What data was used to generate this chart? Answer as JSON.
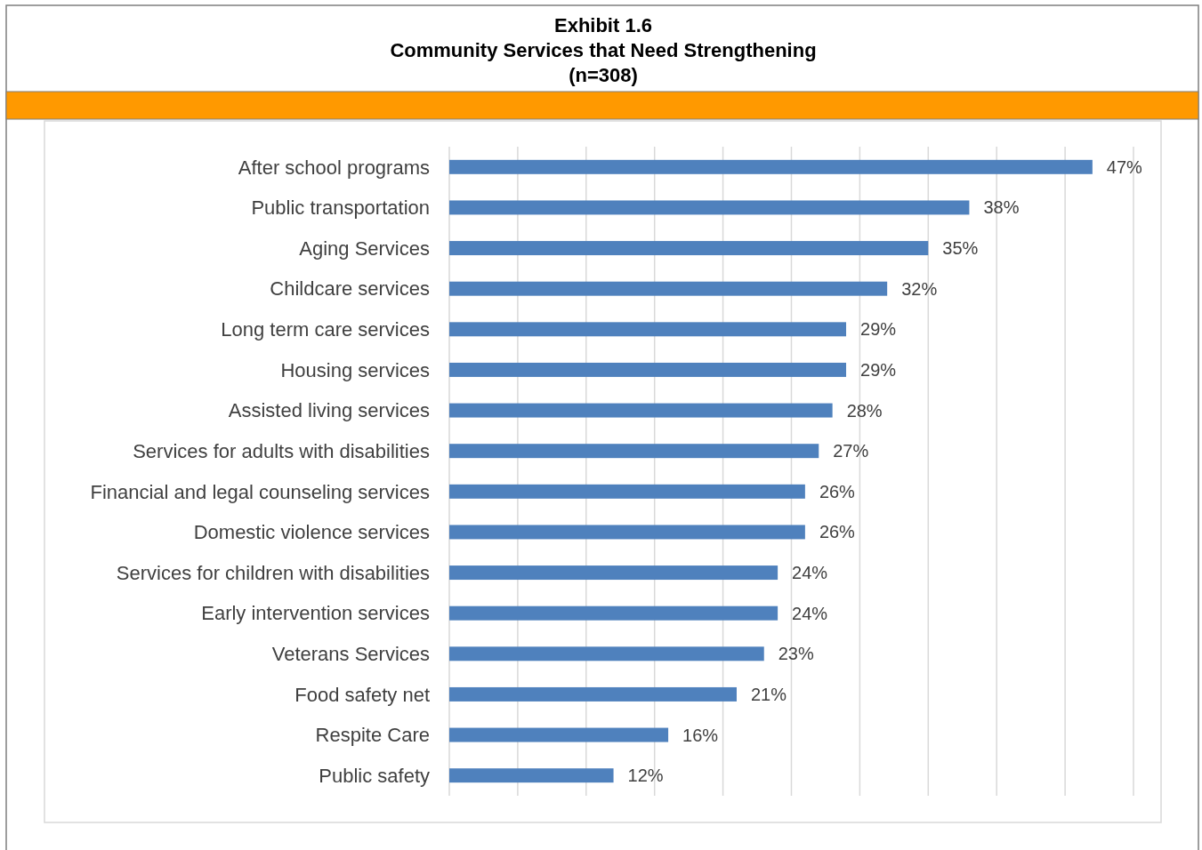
{
  "chart_data": {
    "type": "bar",
    "orientation": "horizontal",
    "title": "Exhibit 1.6\nCommunity Services that Need Strengthening\n(n=308)",
    "categories": [
      "After school programs",
      "Public transportation",
      "Aging Services",
      "Childcare services",
      "Long term care services",
      "Housing services",
      "Assisted living services",
      "Services for adults with disabilities",
      "Financial and legal counseling services",
      "Domestic violence services",
      "Services for children with disabilities",
      "Early intervention services",
      "Veterans Services",
      "Food safety net",
      "Respite Care",
      "Public safety"
    ],
    "values": [
      47,
      38,
      35,
      32,
      29,
      29,
      28,
      27,
      26,
      26,
      24,
      24,
      23,
      21,
      16,
      12
    ],
    "value_labels": [
      "47%",
      "38%",
      "35%",
      "32%",
      "29%",
      "29%",
      "28%",
      "27%",
      "26%",
      "26%",
      "24%",
      "24%",
      "23%",
      "21%",
      "16%",
      "12%"
    ],
    "color": "#4f81bd",
    "xlim": [
      0,
      50
    ],
    "xticks": [
      {
        "value": 0,
        "label": null
      },
      {
        "value": 5,
        "label": null
      },
      {
        "value": 10,
        "label": null
      },
      {
        "value": 15,
        "label": null
      },
      {
        "value": 20,
        "label": null
      },
      {
        "value": 25,
        "label": null
      },
      {
        "value": 30,
        "label": null
      },
      {
        "value": 35,
        "label": null
      },
      {
        "value": 40,
        "label": null
      },
      {
        "value": 45,
        "label": null
      },
      {
        "value": 50,
        "label": null
      }
    ],
    "grid": "x",
    "tick_labels": "y"
  }
}
